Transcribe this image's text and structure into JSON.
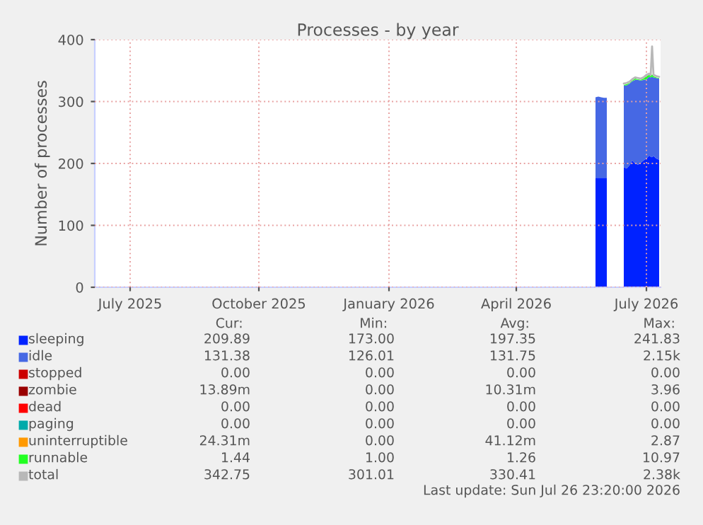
{
  "chart_data": {
    "type": "area",
    "stacked": true,
    "title": "Processes - by year",
    "ylabel": "Number of processes",
    "x": [
      "2026-06-10",
      "2026-06-12",
      "2026-06-14",
      "2026-06-16",
      "2026-06-18",
      "2026-06-19",
      "2026-06-29",
      "2026-06-30",
      "2026-07-02",
      "2026-07-04",
      "2026-07-06",
      "2026-07-08",
      "2026-07-10",
      "2026-07-12",
      "2026-07-14",
      "2026-07-16",
      "2026-07-18",
      "2026-07-19",
      "2026-07-20",
      "2026-07-21",
      "2026-07-23",
      "2026-07-25"
    ],
    "series": [
      {
        "name": "sleeping",
        "color": "#0022ff",
        "values": [
          177,
          177,
          177,
          177,
          177,
          null,
          null,
          194,
          192,
          197,
          205,
          200,
          198,
          201,
          205,
          208,
          213,
          211,
          210,
          212,
          208,
          206
        ]
      },
      {
        "name": "idle",
        "color": "#4668e4",
        "values": [
          130,
          131,
          130,
          129,
          129,
          null,
          null,
          132,
          134,
          132,
          128,
          135,
          137,
          133,
          130,
          128,
          127,
          128,
          130,
          127,
          130,
          131
        ]
      },
      {
        "name": "stopped",
        "color": "#cc0000",
        "values": [
          null,
          null,
          null,
          null,
          null,
          null,
          null,
          null,
          null,
          null,
          null,
          null,
          null,
          null,
          null,
          null,
          null,
          null,
          null,
          null,
          null,
          null
        ]
      },
      {
        "name": "zombie",
        "color": "#990000",
        "values": [
          null,
          null,
          null,
          null,
          null,
          null,
          null,
          null,
          null,
          null,
          null,
          null,
          null,
          null,
          null,
          null,
          null,
          null,
          null,
          null,
          null,
          null
        ]
      },
      {
        "name": "dead",
        "color": "#ff0000",
        "values": [
          null,
          null,
          null,
          null,
          null,
          null,
          null,
          null,
          null,
          null,
          null,
          null,
          null,
          null,
          null,
          null,
          null,
          null,
          null,
          null,
          null,
          null
        ]
      },
      {
        "name": "paging",
        "color": "#00aaaa",
        "values": [
          null,
          null,
          null,
          null,
          null,
          null,
          null,
          null,
          null,
          null,
          null,
          null,
          null,
          null,
          null,
          null,
          null,
          null,
          null,
          null,
          null,
          null
        ]
      },
      {
        "name": "uninterruptible",
        "color": "#ff9900",
        "values": [
          null,
          null,
          null,
          null,
          null,
          null,
          null,
          null,
          null,
          null,
          null,
          null,
          null,
          null,
          null,
          null,
          null,
          null,
          null,
          null,
          null,
          null
        ]
      },
      {
        "name": "runnable",
        "color": "#22ff22",
        "values": [
          null,
          null,
          null,
          null,
          null,
          null,
          null,
          1,
          2,
          1,
          1,
          2,
          1,
          1,
          2,
          5,
          3,
          2,
          4,
          2,
          1,
          1
        ]
      },
      {
        "name": "total",
        "type": "line",
        "color": "#b8b8b8",
        "values": [
          null,
          null,
          null,
          null,
          null,
          null,
          null,
          329,
          330,
          332,
          336,
          339,
          338,
          337,
          339,
          343,
          345,
          343,
          389,
          343,
          341,
          340
        ]
      }
    ],
    "xlim": [
      "2025-06-21",
      "2026-07-26"
    ],
    "xticks": [
      {
        "value": "2025-07-16",
        "label": "July 2025"
      },
      {
        "value": "2025-10-15",
        "label": "October 2025"
      },
      {
        "value": "2026-01-15",
        "label": "January 2026"
      },
      {
        "value": "2026-04-15",
        "label": "April 2026"
      },
      {
        "value": "2026-07-16",
        "label": "July 2026"
      }
    ],
    "ylim": [
      0,
      400
    ],
    "yticks": [
      0,
      100,
      200,
      300,
      400
    ],
    "grid": true,
    "legend": "bottom",
    "annotations": [
      "Cur:",
      "Min:",
      "Avg:",
      "Max:",
      "209.89",
      "173.00",
      "197.35",
      "241.83",
      "131.38",
      "126.01",
      "131.75",
      "2.15k",
      "0.00",
      "0.00",
      "0.00",
      "0.00",
      "13.89m",
      "0.00",
      "10.31m",
      "3.96",
      "0.00",
      "0.00",
      "0.00",
      "0.00",
      "0.00",
      "0.00",
      "0.00",
      "0.00",
      "24.31m",
      "0.00",
      "41.12m",
      "2.87",
      "1.44",
      "1.00",
      "1.26",
      "10.97",
      "342.75",
      "301.01",
      "330.41",
      "2.38k",
      "Last update: Sun Jul 26 23:20:00 2026"
    ]
  }
}
